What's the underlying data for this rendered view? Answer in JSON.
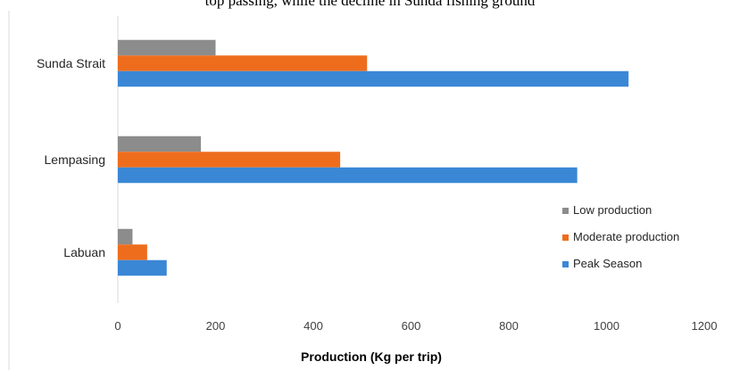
{
  "top_text": "top passing, while the decline in Sunda fishing ground",
  "colors": {
    "Low production": "#8c8c8c",
    "Moderate production": "#ee6d1d",
    "Peak Season": "#3a87d6",
    "axis": "#d9d9d9",
    "border": "#d9d9d9"
  },
  "chart_data": {
    "type": "bar",
    "orientation": "horizontal",
    "categories": [
      "Sunda Strait",
      "Lempasing",
      "Labuan"
    ],
    "series": [
      {
        "name": "Low production",
        "values": [
          200,
          170,
          30
        ]
      },
      {
        "name": "Moderate production",
        "values": [
          510,
          455,
          60
        ]
      },
      {
        "name": "Peak Season",
        "values": [
          1045,
          940,
          100
        ]
      }
    ],
    "title": "",
    "xlabel": "Production (Kg per trip)",
    "ylabel": "",
    "xlim": [
      0,
      1200
    ],
    "xticks": [
      0,
      200,
      400,
      600,
      800,
      1000,
      1200
    ],
    "legend_position": "right",
    "legend_order": [
      "Low production",
      "Moderate production",
      "Peak Season"
    ],
    "grid": false
  }
}
